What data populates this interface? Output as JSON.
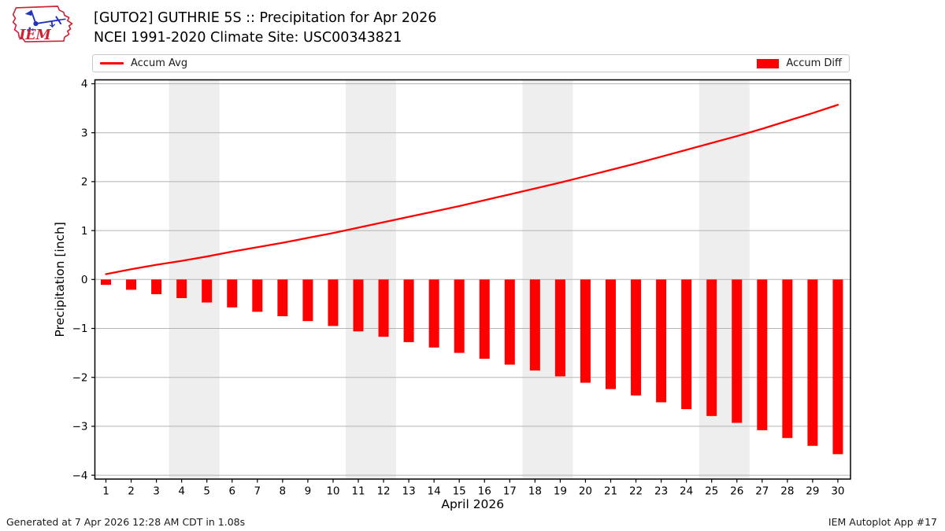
{
  "header": {
    "title_line1": "[GUTO2] GUTHRIE 5S :: Precipitation for Apr 2026",
    "title_line2": "NCEI 1991-2020 Climate Site: USC00343821",
    "logo_text": "IEM"
  },
  "legend": {
    "avg_label": "Accum Avg",
    "diff_label": "Accum Diff"
  },
  "footer": {
    "generated": "Generated at 7 Apr 2026 12:28 AM CDT in 1.08s",
    "app": "IEM Autoplot App #17"
  },
  "colors": {
    "series_red": "#ff0000",
    "grid": "#b3b3b3",
    "weekend_band": "#eeeeee",
    "axis": "#000000",
    "legend_border": "#c8c8c8",
    "logo_red": "#cc2233",
    "logo_blue": "#2233bb"
  },
  "chart_data": {
    "type": "bar",
    "title": "[GUTO2] GUTHRIE 5S :: Precipitation for Apr 2026",
    "subtitle": "NCEI 1991-2020 Climate Site: USC00343821",
    "xlabel": "April 2026",
    "ylabel": "Precipitation [inch]",
    "xlim": [
      0.5,
      30.5
    ],
    "ylim": [
      -4,
      4
    ],
    "yticks": [
      -4,
      -3,
      -2,
      -1,
      0,
      1,
      2,
      3,
      4
    ],
    "grid": true,
    "legend_position": "top full-width",
    "x": [
      1,
      2,
      3,
      4,
      5,
      6,
      7,
      8,
      9,
      10,
      11,
      12,
      13,
      14,
      15,
      16,
      17,
      18,
      19,
      20,
      21,
      22,
      23,
      24,
      25,
      26,
      27,
      28,
      29,
      30
    ],
    "weekend_bands": [
      [
        3.5,
        5.5
      ],
      [
        10.5,
        12.5
      ],
      [
        17.5,
        19.5
      ],
      [
        24.5,
        26.5
      ]
    ],
    "series": [
      {
        "name": "Accum Avg",
        "type": "line",
        "color": "#ff0000",
        "values": [
          0.11,
          0.21,
          0.3,
          0.38,
          0.47,
          0.57,
          0.66,
          0.75,
          0.85,
          0.95,
          1.06,
          1.17,
          1.28,
          1.39,
          1.5,
          1.62,
          1.74,
          1.86,
          1.98,
          2.11,
          2.24,
          2.37,
          2.51,
          2.65,
          2.79,
          2.93,
          3.08,
          3.24,
          3.4,
          3.57
        ]
      },
      {
        "name": "Accum Diff",
        "type": "bar",
        "color": "#ff0000",
        "values": [
          -0.11,
          -0.21,
          -0.3,
          -0.38,
          -0.47,
          -0.57,
          -0.66,
          -0.75,
          -0.85,
          -0.95,
          -1.06,
          -1.17,
          -1.28,
          -1.39,
          -1.5,
          -1.62,
          -1.74,
          -1.86,
          -1.98,
          -2.11,
          -2.24,
          -2.37,
          -2.51,
          -2.65,
          -2.79,
          -2.93,
          -3.08,
          -3.24,
          -3.4,
          -3.57
        ]
      }
    ]
  }
}
